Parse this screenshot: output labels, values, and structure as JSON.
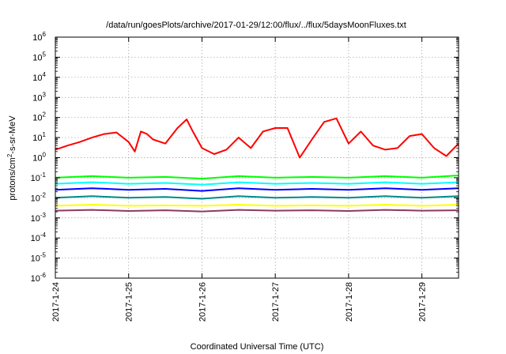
{
  "chart_data": {
    "type": "line",
    "title": "/data/run/goesPlots/archive/2017-01-29/12:00/flux/../flux/5daysMoonFluxes.txt",
    "xlabel": "Coordinated Universal Time (UTC)",
    "ylabel": {
      "prefix": "protons/cm",
      "sup": "2",
      "suffix": "-s-sr-MeV"
    },
    "yscale": "log",
    "ylim": [
      1e-06,
      1000000.0
    ],
    "yticks": [
      {
        "base": "10",
        "exp": "-6"
      },
      {
        "base": "10",
        "exp": "-5"
      },
      {
        "base": "10",
        "exp": "-4"
      },
      {
        "base": "10",
        "exp": "-3"
      },
      {
        "base": "10",
        "exp": "-2"
      },
      {
        "base": "10",
        "exp": "-1"
      },
      {
        "base": "10",
        "exp": "0"
      },
      {
        "base": "10",
        "exp": "1"
      },
      {
        "base": "10",
        "exp": "2"
      },
      {
        "base": "10",
        "exp": "3"
      },
      {
        "base": "10",
        "exp": "4"
      },
      {
        "base": "10",
        "exp": "5"
      },
      {
        "base": "10",
        "exp": "6"
      }
    ],
    "xlim": [
      "2017-01-24",
      "2017-01-29 12:00"
    ],
    "xticks": [
      "2017-1-24",
      "2017-1-25",
      "2017-1-26",
      "2017-1-27",
      "2017-1-28",
      "2017-1-29"
    ],
    "grid": true,
    "series": [
      {
        "color": "#ff0000",
        "x": [
          "2017-01-24 00:00",
          "2017-01-24 04:00",
          "2017-01-24 08:00",
          "2017-01-24 12:00",
          "2017-01-24 16:00",
          "2017-01-24 20:00",
          "2017-01-25 00:00",
          "2017-01-25 02:00",
          "2017-01-25 04:00",
          "2017-01-25 06:00",
          "2017-01-25 08:00",
          "2017-01-25 12:00",
          "2017-01-25 16:00",
          "2017-01-25 19:00",
          "2017-01-25 21:00",
          "2017-01-26 00:00",
          "2017-01-26 04:00",
          "2017-01-26 08:00",
          "2017-01-26 12:00",
          "2017-01-26 16:00",
          "2017-01-26 20:00",
          "2017-01-27 00:00",
          "2017-01-27 04:00",
          "2017-01-27 08:00",
          "2017-01-27 12:00",
          "2017-01-27 16:00",
          "2017-01-27 20:00",
          "2017-01-28 00:00",
          "2017-01-28 04:00",
          "2017-01-28 08:00",
          "2017-01-28 12:00",
          "2017-01-28 16:00",
          "2017-01-28 20:00",
          "2017-01-29 00:00",
          "2017-01-29 04:00",
          "2017-01-29 08:00",
          "2017-01-29 12:00"
        ],
        "y": [
          2.5,
          4,
          6,
          10,
          15,
          18,
          6,
          2,
          20,
          15,
          8,
          5,
          30,
          80,
          20,
          3,
          1.5,
          2.5,
          10,
          3,
          20,
          30,
          30,
          1,
          8,
          60,
          90,
          5,
          20,
          4,
          2.5,
          3,
          12,
          15,
          3,
          1.2,
          5
        ]
      },
      {
        "color": "#00ff00",
        "x": [
          "2017-01-24 00:00",
          "2017-01-24 12:00",
          "2017-01-25 00:00",
          "2017-01-25 12:00",
          "2017-01-26 00:00",
          "2017-01-26 12:00",
          "2017-01-27 00:00",
          "2017-01-27 12:00",
          "2017-01-28 00:00",
          "2017-01-28 12:00",
          "2017-01-29 00:00",
          "2017-01-29 12:00"
        ],
        "y": [
          0.1,
          0.12,
          0.1,
          0.11,
          0.09,
          0.12,
          0.1,
          0.11,
          0.1,
          0.12,
          0.1,
          0.13
        ]
      },
      {
        "color": "#00ffff",
        "x": [
          "2017-01-24 00:00",
          "2017-01-24 12:00",
          "2017-01-25 00:00",
          "2017-01-25 12:00",
          "2017-01-26 00:00",
          "2017-01-26 12:00",
          "2017-01-27 00:00",
          "2017-01-27 12:00",
          "2017-01-28 00:00",
          "2017-01-28 12:00",
          "2017-01-29 00:00",
          "2017-01-29 12:00"
        ],
        "y": [
          0.05,
          0.06,
          0.05,
          0.055,
          0.045,
          0.06,
          0.05,
          0.055,
          0.05,
          0.06,
          0.05,
          0.06
        ]
      },
      {
        "color": "#0000ff",
        "x": [
          "2017-01-24 00:00",
          "2017-01-24 12:00",
          "2017-01-25 00:00",
          "2017-01-25 12:00",
          "2017-01-26 00:00",
          "2017-01-26 12:00",
          "2017-01-27 00:00",
          "2017-01-27 12:00",
          "2017-01-28 00:00",
          "2017-01-28 12:00",
          "2017-01-29 00:00",
          "2017-01-29 12:00"
        ],
        "y": [
          0.025,
          0.03,
          0.025,
          0.028,
          0.022,
          0.03,
          0.025,
          0.028,
          0.025,
          0.03,
          0.025,
          0.03
        ]
      },
      {
        "color": "#008b8b",
        "x": [
          "2017-01-24 00:00",
          "2017-01-24 12:00",
          "2017-01-25 00:00",
          "2017-01-25 12:00",
          "2017-01-26 00:00",
          "2017-01-26 12:00",
          "2017-01-27 00:00",
          "2017-01-27 12:00",
          "2017-01-28 00:00",
          "2017-01-28 12:00",
          "2017-01-29 00:00",
          "2017-01-29 12:00"
        ],
        "y": [
          0.01,
          0.012,
          0.01,
          0.011,
          0.009,
          0.012,
          0.01,
          0.011,
          0.01,
          0.012,
          0.01,
          0.012
        ]
      },
      {
        "color": "#ffff00",
        "x": [
          "2017-01-24 00:00",
          "2017-01-24 12:00",
          "2017-01-25 00:00",
          "2017-01-25 12:00",
          "2017-01-26 00:00",
          "2017-01-26 12:00",
          "2017-01-27 00:00",
          "2017-01-27 12:00",
          "2017-01-28 00:00",
          "2017-01-28 12:00",
          "2017-01-29 00:00",
          "2017-01-29 12:00"
        ],
        "y": [
          0.004,
          0.0045,
          0.004,
          0.0042,
          0.004,
          0.0045,
          0.004,
          0.0042,
          0.004,
          0.0045,
          0.004,
          0.0045
        ]
      },
      {
        "color": "#8b3a62",
        "x": [
          "2017-01-24 00:00",
          "2017-01-24 12:00",
          "2017-01-25 00:00",
          "2017-01-25 12:00",
          "2017-01-26 00:00",
          "2017-01-26 12:00",
          "2017-01-27 00:00",
          "2017-01-27 12:00",
          "2017-01-28 00:00",
          "2017-01-28 12:00",
          "2017-01-29 00:00",
          "2017-01-29 12:00"
        ],
        "y": [
          0.0023,
          0.0025,
          0.0022,
          0.0024,
          0.0021,
          0.0025,
          0.0023,
          0.0024,
          0.0022,
          0.0025,
          0.0023,
          0.0024
        ]
      }
    ]
  }
}
